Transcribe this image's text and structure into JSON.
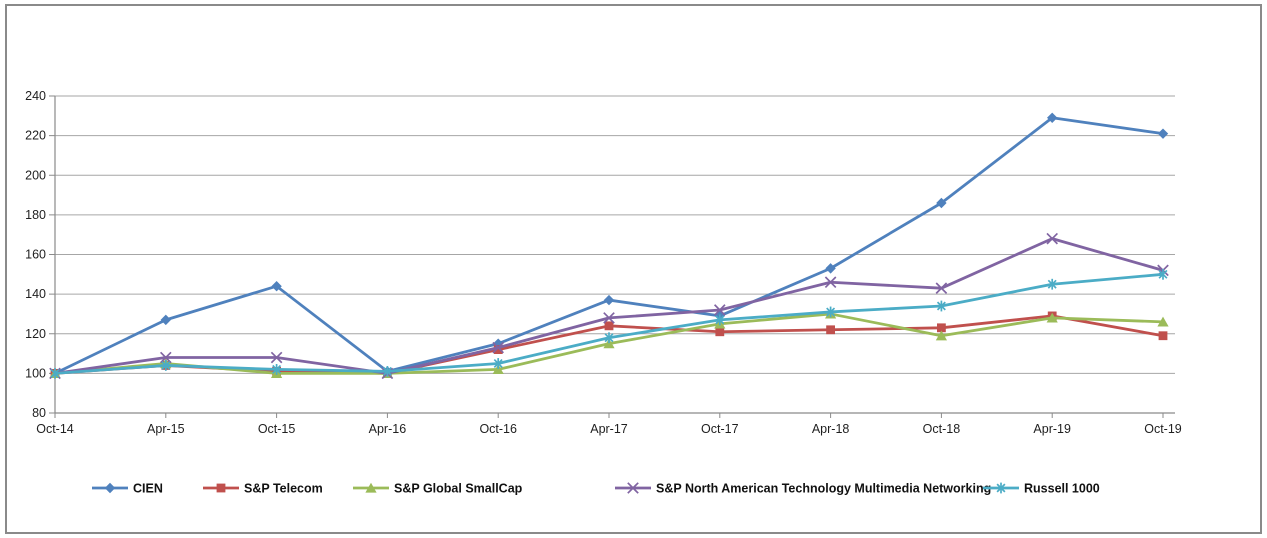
{
  "chart_data": {
    "type": "line",
    "title": "",
    "xlabel": "",
    "ylabel": "",
    "ylim": [
      80,
      240
    ],
    "ytick_step": 20,
    "y_tick_labels": [
      "80",
      "100",
      "120",
      "140",
      "160",
      "180",
      "200",
      "220",
      "240"
    ],
    "grid": "horizontal",
    "legend_position": "bottom",
    "categories": [
      "Oct-14",
      "Apr-15",
      "Oct-15",
      "Apr-16",
      "Oct-16",
      "Apr-17",
      "Oct-17",
      "Apr-18",
      "Oct-18",
      "Apr-19",
      "Oct-19"
    ],
    "series": [
      {
        "name": "CIEN",
        "marker": "diamond",
        "color": "#4F81BD",
        "values": [
          100,
          127,
          144,
          101,
          115,
          137,
          129,
          153,
          186,
          229,
          221
        ]
      },
      {
        "name": "S&P Telecom",
        "marker": "square",
        "color": "#C0504D",
        "values": [
          100,
          104,
          101,
          100,
          112,
          124,
          121,
          122,
          123,
          129,
          119
        ]
      },
      {
        "name": "S&P Global SmallCap",
        "marker": "triangle",
        "color": "#9BBB59",
        "values": [
          100,
          105,
          100,
          100,
          102,
          115,
          125,
          130,
          119,
          128,
          126
        ]
      },
      {
        "name": "S&P North American Technology Multimedia Networking",
        "marker": "xmark",
        "color": "#8064A2",
        "values": [
          100,
          108,
          108,
          100,
          113,
          128,
          132,
          146,
          143,
          168,
          152
        ]
      },
      {
        "name": "Russell 1000",
        "marker": "asterisk",
        "color": "#4BACC6",
        "values": [
          100,
          104,
          102,
          101,
          105,
          118,
          127,
          131,
          134,
          145,
          150
        ]
      }
    ],
    "colors": {
      "gridline": "#A6A6A6",
      "axis": "#8a8a8a",
      "tick": "#8a8a8a",
      "label": "#1f1f1f",
      "frame_border": "#8a8a8a",
      "background": "#ffffff"
    }
  }
}
